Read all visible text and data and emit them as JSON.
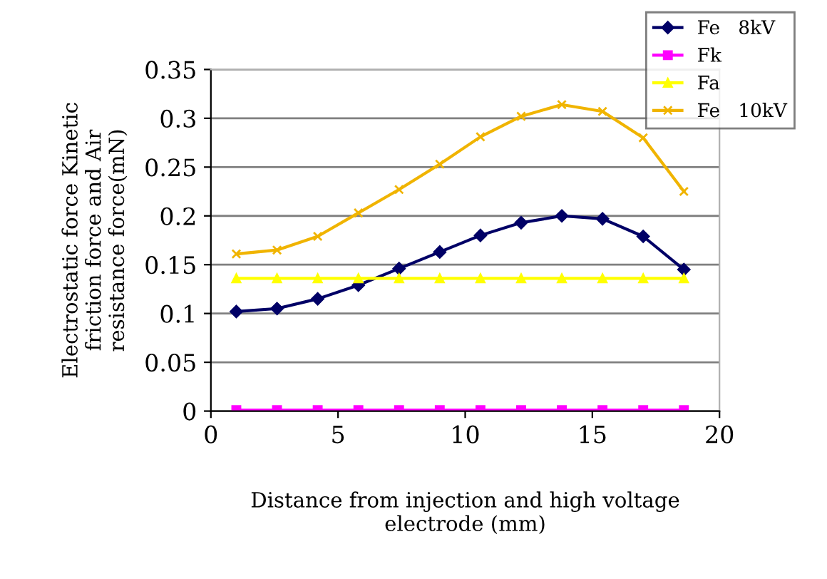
{
  "chart_data": {
    "type": "line",
    "xlabel": "Distance from injection and high voltage\nelectrode (mm)",
    "ylabel": "Electrostatic force Kinetic\nfriction force and Air\nresistance force(mN)",
    "x": [
      1,
      2.6,
      4.2,
      5.8,
      7.4,
      9,
      10.6,
      12.2,
      13.8,
      15.4,
      17,
      18.6
    ],
    "series": [
      {
        "name": "Fe   8kV",
        "color": "#000066",
        "marker": "diamond",
        "values": [
          0.102,
          0.105,
          0.115,
          0.129,
          0.146,
          0.163,
          0.18,
          0.193,
          0.2,
          0.197,
          0.179,
          0.145
        ]
      },
      {
        "name": "Fk",
        "color": "#ff00ff",
        "marker": "square",
        "values": [
          0.001,
          0.001,
          0.001,
          0.001,
          0.001,
          0.001,
          0.001,
          0.001,
          0.001,
          0.001,
          0.001,
          0.001
        ]
      },
      {
        "name": "Fa",
        "color": "#ffff00",
        "marker": "triangle",
        "values": [
          0.136,
          0.136,
          0.136,
          0.136,
          0.136,
          0.136,
          0.136,
          0.136,
          0.136,
          0.136,
          0.136,
          0.136
        ]
      },
      {
        "name": "Fe   10kV",
        "color": "#f0b400",
        "marker": "cross",
        "values": [
          0.161,
          0.165,
          0.179,
          0.203,
          0.227,
          0.253,
          0.281,
          0.302,
          0.314,
          0.307,
          0.28,
          0.225
        ]
      }
    ],
    "xlim": [
      0,
      20
    ],
    "xticks": [
      0,
      5,
      10,
      15,
      20
    ],
    "ylim": [
      0,
      0.35
    ],
    "yticks": [
      {
        "value": 0,
        "label": "0"
      },
      0.05,
      {
        "value": 0.1,
        "label": "0.1"
      },
      0.15,
      {
        "value": 0.2,
        "label": "0.2"
      },
      0.25,
      {
        "value": 0.3,
        "label": "0.3"
      },
      0.35
    ],
    "grid": "y",
    "legend": "top right",
    "line_style": "solid"
  }
}
